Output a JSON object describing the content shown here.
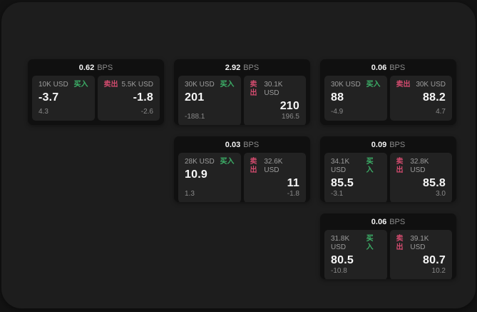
{
  "labels": {
    "bps": "BPS",
    "buy": "买入",
    "sell": "卖出"
  },
  "colors": {
    "buy_green": "#3db269",
    "sell_rose": "#d24b6e",
    "panel_bg": "#1d1d1d",
    "card_bg": "#101010",
    "tile_bg": "#222222"
  },
  "cards": [
    {
      "row": 1,
      "col": 1,
      "bps": "0.62",
      "buy": {
        "amount": "10K USD",
        "value": "-3.7",
        "delta": "4.3"
      },
      "sell": {
        "amount": "5.5K USD",
        "value": "-1.8",
        "delta": "-2.6"
      }
    },
    {
      "row": 1,
      "col": 2,
      "bps": "2.92",
      "buy": {
        "amount": "30K USD",
        "value": "201",
        "delta": "-188.1"
      },
      "sell": {
        "amount": "30.1K USD",
        "value": "210",
        "delta": "196.5"
      }
    },
    {
      "row": 1,
      "col": 3,
      "bps": "0.06",
      "buy": {
        "amount": "30K USD",
        "value": "88",
        "delta": "-4.9"
      },
      "sell": {
        "amount": "30K USD",
        "value": "88.2",
        "delta": "4.7"
      }
    },
    {
      "row": 2,
      "col": 2,
      "bps": "0.03",
      "buy": {
        "amount": "28K USD",
        "value": "10.9",
        "delta": "1.3"
      },
      "sell": {
        "amount": "32.6K USD",
        "value": "11",
        "delta": "-1.8"
      }
    },
    {
      "row": 2,
      "col": 3,
      "bps": "0.09",
      "buy": {
        "amount": "34.1K USD",
        "value": "85.5",
        "delta": "-3.1"
      },
      "sell": {
        "amount": "32.8K USD",
        "value": "85.8",
        "delta": "3.0"
      }
    },
    {
      "row": 3,
      "col": 3,
      "bps": "0.06",
      "buy": {
        "amount": "31.8K USD",
        "value": "80.5",
        "delta": "-10.8"
      },
      "sell": {
        "amount": "39.1K USD",
        "value": "80.7",
        "delta": "10.2"
      }
    }
  ]
}
